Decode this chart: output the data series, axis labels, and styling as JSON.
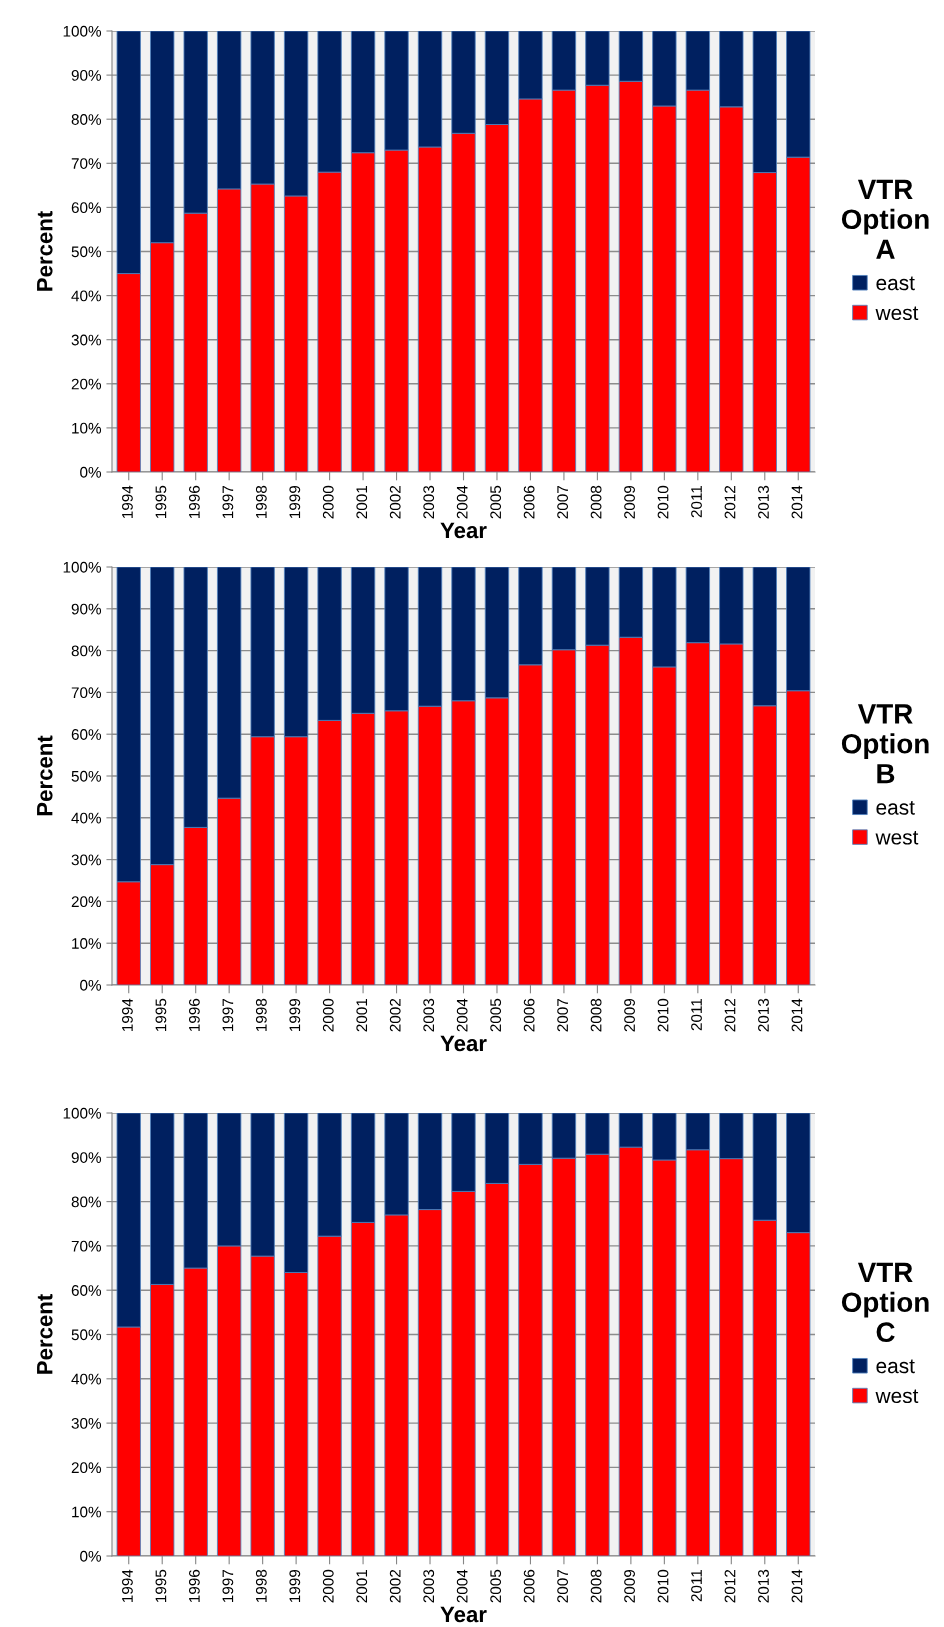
{
  "chart_data": [
    {
      "type": "bar",
      "stacked": true,
      "xlabel": "Year",
      "ylabel": "Percent",
      "legend_title": "VTR Option A",
      "legend": "right",
      "grid": "y",
      "categories": [
        "1994",
        "1995",
        "1996",
        "1997",
        "1998",
        "1999",
        "2000",
        "2001",
        "2002",
        "2003",
        "2004",
        "2005",
        "2006",
        "2007",
        "2008",
        "2009",
        "2010",
        "2011",
        "2012",
        "2013",
        "2014"
      ],
      "ylim": [
        0,
        100
      ],
      "yticks": [
        {
          "value": 0,
          "label": "0%"
        },
        {
          "value": 10,
          "label": "10%"
        },
        {
          "value": 20,
          "label": "20%"
        },
        {
          "value": 30,
          "label": "30%"
        },
        {
          "value": 40,
          "label": "40%"
        },
        {
          "value": 50,
          "label": "50%"
        },
        {
          "value": 60,
          "label": "60%"
        },
        {
          "value": 70,
          "label": "70%"
        },
        {
          "value": 80,
          "label": "80%"
        },
        {
          "value": 90,
          "label": "90%"
        },
        {
          "value": 100,
          "label": "100%"
        }
      ],
      "series": [
        {
          "name": "west",
          "color": "#ff0000",
          "values": [
            45,
            52,
            58.7,
            64.2,
            65.3,
            62.6,
            68,
            72.4,
            73,
            73.7,
            76.8,
            78.8,
            84.6,
            86.6,
            87.7,
            88.6,
            83,
            86.6,
            82.8,
            67.9,
            71.4
          ]
        },
        {
          "name": "east",
          "color": "#002060",
          "values": [
            55,
            48,
            41.3,
            35.8,
            34.7,
            37.4,
            32,
            27.6,
            27,
            26.3,
            23.2,
            21.2,
            15.4,
            13.4,
            12.3,
            11.4,
            17,
            13.4,
            17.2,
            32.1,
            28.6
          ]
        }
      ]
    },
    {
      "type": "bar",
      "stacked": true,
      "xlabel": "Year",
      "ylabel": "Percent",
      "legend_title": "VTR Option B",
      "legend": "right",
      "grid": "y",
      "categories": [
        "1994",
        "1995",
        "1996",
        "1997",
        "1998",
        "1999",
        "2000",
        "2001",
        "2002",
        "2003",
        "2004",
        "2005",
        "2006",
        "2007",
        "2008",
        "2009",
        "2010",
        "2011",
        "2012",
        "2013",
        "2014"
      ],
      "ylim": [
        0,
        100
      ],
      "yticks": [
        {
          "value": 0,
          "label": "0%"
        },
        {
          "value": 10,
          "label": "10%"
        },
        {
          "value": 20,
          "label": "20%"
        },
        {
          "value": 30,
          "label": "30%"
        },
        {
          "value": 40,
          "label": "40%"
        },
        {
          "value": 50,
          "label": "50%"
        },
        {
          "value": 60,
          "label": "60%"
        },
        {
          "value": 70,
          "label": "70%"
        },
        {
          "value": 80,
          "label": "80%"
        },
        {
          "value": 90,
          "label": "90%"
        },
        {
          "value": 100,
          "label": "100%"
        }
      ],
      "series": [
        {
          "name": "west",
          "color": "#ff0000",
          "values": [
            24.7,
            28.8,
            37.7,
            44.7,
            59.4,
            59.4,
            63.3,
            65,
            65.6,
            66.7,
            68,
            68.7,
            76.6,
            80.2,
            81.3,
            83.2,
            76.1,
            81.9,
            81.6,
            66.8,
            70.4
          ]
        },
        {
          "name": "east",
          "color": "#002060",
          "values": [
            75.3,
            71.2,
            62.3,
            55.3,
            40.6,
            40.6,
            36.7,
            35,
            34.4,
            33.3,
            32,
            31.3,
            23.4,
            19.8,
            18.7,
            16.8,
            23.9,
            18.1,
            18.4,
            33.2,
            29.6
          ]
        }
      ]
    },
    {
      "type": "bar",
      "stacked": true,
      "xlabel": "Year",
      "ylabel": "Percent",
      "legend_title": "VTR Option C",
      "legend": "right",
      "grid": "y",
      "categories": [
        "1994",
        "1995",
        "1996",
        "1997",
        "1998",
        "1999",
        "2000",
        "2001",
        "2002",
        "2003",
        "2004",
        "2005",
        "2006",
        "2007",
        "2008",
        "2009",
        "2010",
        "2011",
        "2012",
        "2013",
        "2014"
      ],
      "ylim": [
        0,
        100
      ],
      "yticks": [
        {
          "value": 0,
          "label": "0%"
        },
        {
          "value": 10,
          "label": "10%"
        },
        {
          "value": 20,
          "label": "20%"
        },
        {
          "value": 30,
          "label": "30%"
        },
        {
          "value": 40,
          "label": "40%"
        },
        {
          "value": 50,
          "label": "50%"
        },
        {
          "value": 60,
          "label": "60%"
        },
        {
          "value": 70,
          "label": "70%"
        },
        {
          "value": 80,
          "label": "80%"
        },
        {
          "value": 90,
          "label": "90%"
        },
        {
          "value": 100,
          "label": "100%"
        }
      ],
      "series": [
        {
          "name": "west",
          "color": "#ff0000",
          "values": [
            51.7,
            61.3,
            65,
            70,
            67.7,
            64,
            72.2,
            75.3,
            77,
            78.2,
            82.3,
            84.1,
            88.4,
            89.8,
            90.7,
            92.3,
            89.4,
            91.7,
            89.7,
            75.8,
            73
          ]
        },
        {
          "name": "east",
          "color": "#002060",
          "values": [
            48.3,
            38.7,
            35,
            30,
            32.3,
            36,
            27.8,
            24.7,
            23,
            21.8,
            17.7,
            15.9,
            11.6,
            10.2,
            9.3,
            7.7,
            10.6,
            8.3,
            10.3,
            24.2,
            27
          ]
        }
      ]
    }
  ]
}
